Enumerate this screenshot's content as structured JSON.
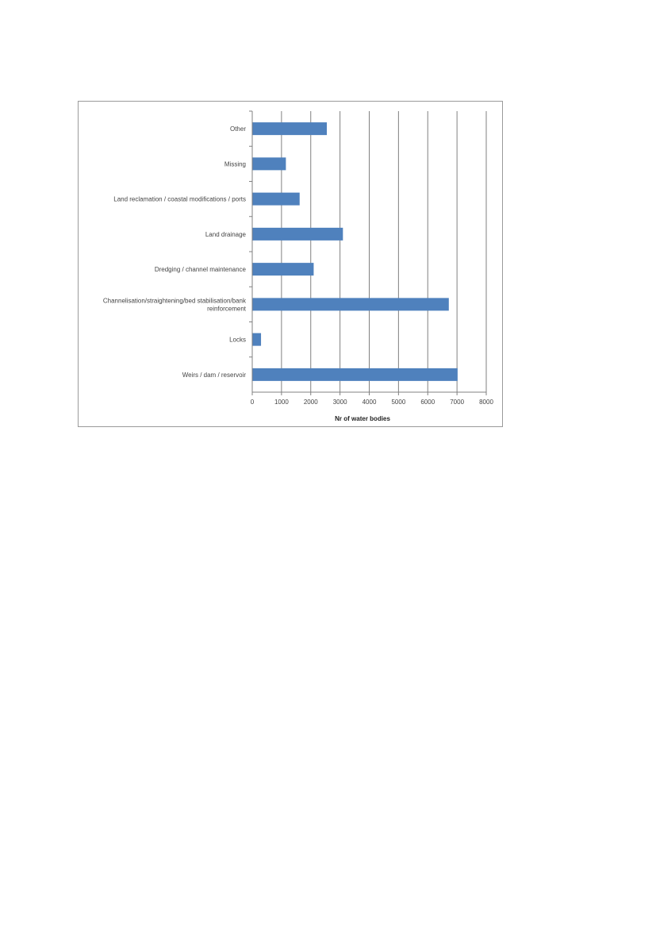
{
  "chart_data": {
    "type": "bar",
    "orientation": "horizontal",
    "categories": [
      "Other",
      "Missing",
      "Land reclamation / coastal modifications / ports",
      "Land drainage",
      "Dredging / channel maintenance",
      "Channelisation/straightening/bed stabilisation/bank reinforcement",
      "Locks",
      "Weirs / dam / reservoir"
    ],
    "category_lines": [
      [
        "Other"
      ],
      [
        "Missing"
      ],
      [
        "Land reclamation / coastal modifications / ports"
      ],
      [
        "Land drainage"
      ],
      [
        "Dredging / channel maintenance"
      ],
      [
        "Channelisation/straightening/bed stabilisation/bank",
        "reinforcement"
      ],
      [
        "Locks"
      ],
      [
        "Weirs / dam / reservoir"
      ]
    ],
    "values": [
      2550,
      1150,
      1620,
      3100,
      2100,
      6720,
      300,
      7020
    ],
    "xlabel": "Nr of water bodies",
    "xlim": [
      0,
      8000
    ],
    "xticks": [
      0,
      1000,
      2000,
      3000,
      4000,
      5000,
      6000,
      7000,
      8000
    ],
    "xtick_labels": [
      "0",
      "1000",
      "2000",
      "3000",
      "4000",
      "5000",
      "6000",
      "7000",
      "8000"
    ],
    "grid": "vertical",
    "legend": "none",
    "colors": {
      "bar": "#4f81bd",
      "grid": "#808080",
      "axis": "#808080",
      "frame": "#9a9a9a"
    }
  }
}
